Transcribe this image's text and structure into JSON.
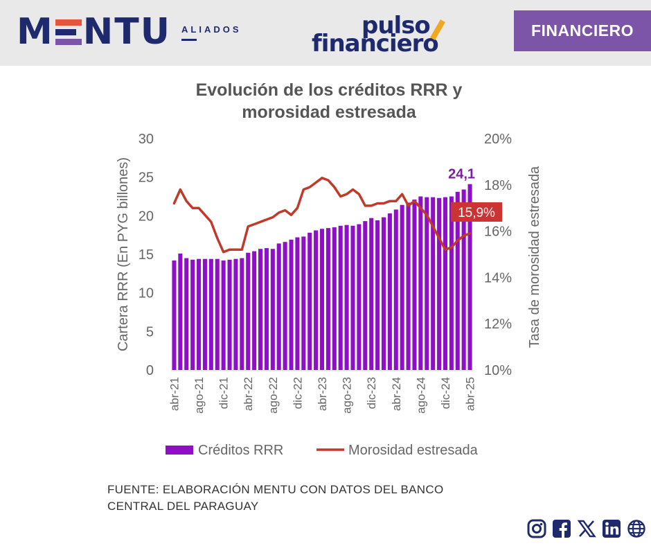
{
  "header": {
    "logo_left_main": "MENTU",
    "logo_left_sub": "ALIADOS",
    "logo_center_top": "pulso",
    "logo_center_bottom": "financiero",
    "badge_label": "FINANCIERO",
    "brand_color": "#1f2a6e",
    "badge_color": "#7d55a8"
  },
  "source_line1": "FUENTE: ELABORACIÓN MENTU CON DATOS DEL BANCO",
  "source_line2": "CENTRAL DEL PARAGUAY",
  "social_icons": [
    "instagram-icon",
    "facebook-icon",
    "x-icon",
    "linkedin-icon",
    "globe-icon"
  ],
  "chart_data": {
    "type": "bar+line",
    "title_line1": "Evolución de los créditos RRR y",
    "title_line2": "morosidad estresada",
    "ylabel_left": "Cartera RRR (En PYG billones)",
    "ylabel_right": "Tasa de morosidad estresada",
    "ylim_left": [
      0,
      30
    ],
    "ylim_right": [
      10,
      20
    ],
    "yticks_left": [
      "0",
      "5",
      "10",
      "15",
      "20",
      "25",
      "30"
    ],
    "yticks_right": [
      "10%",
      "12%",
      "14%",
      "16%",
      "18%",
      "20%"
    ],
    "xticks": [
      "abr-21",
      "ago-21",
      "dic-21",
      "abr-22",
      "ago-22",
      "dic-22",
      "abr-23",
      "ago-23",
      "dic-23",
      "abr-24",
      "ago-24",
      "dic-24",
      "abr-25"
    ],
    "categories": [
      "abr-21",
      "may-21",
      "jun-21",
      "jul-21",
      "ago-21",
      "sep-21",
      "oct-21",
      "nov-21",
      "dic-21",
      "ene-22",
      "feb-22",
      "mar-22",
      "abr-22",
      "may-22",
      "jun-22",
      "jul-22",
      "ago-22",
      "sep-22",
      "oct-22",
      "nov-22",
      "dic-22",
      "ene-23",
      "feb-23",
      "mar-23",
      "abr-23",
      "may-23",
      "jun-23",
      "jul-23",
      "ago-23",
      "sep-23",
      "oct-23",
      "nov-23",
      "dic-23",
      "ene-24",
      "feb-24",
      "mar-24",
      "abr-24",
      "may-24",
      "jun-24",
      "jul-24",
      "ago-24",
      "sep-24",
      "oct-24",
      "nov-24",
      "dic-24",
      "ene-25",
      "feb-25",
      "mar-25",
      "abr-25"
    ],
    "series": [
      {
        "name": "Créditos RRR",
        "axis": "left",
        "color": "#8e0fc6",
        "values": [
          14.2,
          15.1,
          14.5,
          14.3,
          14.4,
          14.4,
          14.4,
          14.4,
          14.2,
          14.3,
          14.4,
          14.5,
          15.2,
          15.4,
          15.7,
          15.8,
          15.7,
          16.4,
          16.6,
          16.9,
          17.2,
          17.3,
          17.8,
          18.1,
          18.3,
          18.4,
          18.5,
          18.7,
          18.8,
          18.7,
          18.9,
          19.3,
          19.7,
          19.4,
          19.8,
          20.3,
          20.8,
          21.4,
          21.7,
          22.1,
          22.5,
          22.4,
          22.4,
          22.3,
          22.4,
          22.5,
          23.1,
          23.4,
          24.1
        ]
      },
      {
        "name": "Morosidad estresada",
        "axis": "right",
        "color": "#c0392b",
        "values": [
          17.2,
          17.8,
          17.3,
          17.0,
          17.0,
          16.7,
          16.4,
          15.7,
          15.1,
          15.2,
          15.2,
          15.2,
          16.2,
          16.3,
          16.4,
          16.5,
          16.6,
          16.8,
          16.9,
          16.7,
          17.0,
          17.8,
          17.9,
          18.1,
          18.3,
          18.2,
          17.9,
          17.5,
          17.6,
          17.8,
          17.6,
          17.1,
          17.1,
          17.2,
          17.2,
          17.3,
          17.3,
          17.6,
          17.1,
          17.3,
          17.0,
          16.7,
          16.2,
          15.7,
          15.2,
          15.3,
          15.6,
          15.8,
          15.9
        ]
      }
    ],
    "labels": {
      "last_bar": "24,1",
      "last_line": "15,9%"
    },
    "legend": {
      "position": "bottom",
      "items": [
        "Créditos RRR",
        "Morosidad estresada"
      ]
    },
    "grid": false
  }
}
